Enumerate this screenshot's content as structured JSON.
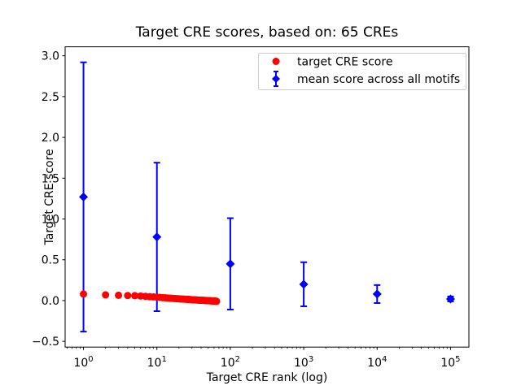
{
  "title": "Target CRE scores, based on: 65 CREs",
  "axes": {
    "xlabel": "Target CRE rank (log)",
    "ylabel": "Target CRE score",
    "x_scale": "log",
    "xtick_base": "10",
    "xtick_exponents": [
      0,
      1,
      2,
      3,
      4,
      5
    ],
    "ytick_values": [
      -0.5,
      0.0,
      0.5,
      1.0,
      1.5,
      2.0,
      2.5,
      3.0
    ],
    "ytick_labels": [
      "−0.5",
      "0.0",
      "0.5",
      "1.0",
      "1.5",
      "2.0",
      "2.5",
      "3.0"
    ]
  },
  "legend": {
    "position": "upper right",
    "items": [
      {
        "label": "target CRE score",
        "marker": "circle",
        "color": "#ff0000"
      },
      {
        "label": "mean score across all motifs",
        "marker": "diamond-errorbar",
        "color": "#0000ff"
      }
    ]
  },
  "chart_data": {
    "type": "scatter",
    "title": "Target CRE scores, based on: 65 CREs",
    "xlabel": "Target CRE rank (log)",
    "ylabel": "Target CRE score",
    "x_scale": "log",
    "xlim_log10": [
      -0.25,
      5.25
    ],
    "ylim": [
      -0.57,
      3.11
    ],
    "grid": false,
    "legend_position": "upper right",
    "series": [
      {
        "name": "target CRE score",
        "marker": "circle",
        "color": "#ff0000",
        "x": [
          1,
          2,
          3,
          4,
          5,
          6,
          7,
          8,
          9,
          10,
          11,
          12,
          13,
          14,
          15,
          16,
          17,
          18,
          19,
          20,
          21,
          22,
          23,
          24,
          25,
          26,
          27,
          28,
          29,
          30,
          31,
          32,
          33,
          34,
          35,
          36,
          37,
          38,
          39,
          40,
          41,
          42,
          43,
          44,
          45,
          46,
          47,
          48,
          49,
          50,
          51,
          52,
          53,
          54,
          55,
          56,
          57,
          58,
          59,
          60,
          61,
          62,
          63,
          64,
          65
        ],
        "y": [
          0.08,
          0.07,
          0.065,
          0.062,
          0.06,
          0.056,
          0.052,
          0.048,
          0.045,
          0.042,
          0.039,
          0.036,
          0.034,
          0.032,
          0.03,
          0.028,
          0.026,
          0.025,
          0.023,
          0.022,
          0.02,
          0.019,
          0.018,
          0.017,
          0.016,
          0.015,
          0.014,
          0.013,
          0.012,
          0.011,
          0.01,
          0.009,
          0.009,
          0.008,
          0.007,
          0.007,
          0.006,
          0.005,
          0.005,
          0.004,
          0.004,
          0.003,
          0.003,
          0.002,
          0.002,
          0.001,
          0.001,
          0.0,
          0.0,
          -0.001,
          -0.001,
          -0.002,
          -0.002,
          -0.003,
          -0.003,
          -0.004,
          -0.004,
          -0.005,
          -0.005,
          -0.006,
          -0.006,
          -0.007,
          -0.007,
          -0.008,
          -0.008
        ]
      },
      {
        "name": "mean score across all motifs",
        "marker": "diamond",
        "color": "#0000ff",
        "x": [
          1,
          10,
          100,
          1000,
          10000,
          100000
        ],
        "y": [
          1.27,
          0.78,
          0.45,
          0.2,
          0.08,
          0.02
        ],
        "yerr": [
          1.65,
          0.91,
          0.56,
          0.27,
          0.11,
          0.03
        ]
      }
    ]
  }
}
